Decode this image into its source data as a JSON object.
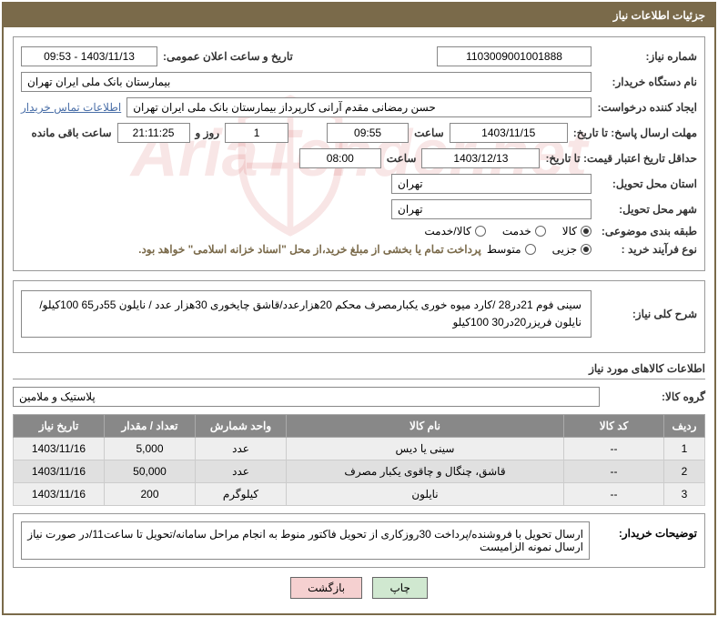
{
  "header": {
    "title": "جزئیات اطلاعات نیاز"
  },
  "form": {
    "need_number_label": "شماره نیاز:",
    "need_number": "1103009001001888",
    "announce_label": "تاریخ و ساعت اعلان عمومی:",
    "announce_value": "1403/11/13 - 09:53",
    "buyer_org_label": "نام دستگاه خریدار:",
    "buyer_org": "بیمارستان بانک ملی ایران تهران",
    "requester_label": "ایجاد کننده درخواست:",
    "requester": "حسن رمضانی مقدم آرانی کارپرداز بیمارستان بانک ملی ایران تهران",
    "contact_link": "اطلاعات تماس خریدار",
    "deadline_label": "مهلت ارسال پاسخ: تا تاریخ:",
    "deadline_date": "1403/11/15",
    "time_label": "ساعت",
    "deadline_time": "09:55",
    "days_label": "روز و",
    "days_value": "1",
    "remaining_time": "21:11:25",
    "remaining_label": "ساعت باقی مانده",
    "validity_label": "حداقل تاریخ اعتبار قیمت: تا تاریخ:",
    "validity_date": "1403/12/13",
    "validity_time": "08:00",
    "province_label": "استان محل تحویل:",
    "province": "تهران",
    "city_label": "شهر محل تحویل:",
    "city": "تهران",
    "category_label": "طبقه بندی موضوعی:",
    "purchase_type_label": "نوع فرآیند خرید :",
    "payment_note": "پرداخت تمام یا بخشی از مبلغ خرید،از محل \"اسناد خزانه اسلامی\" خواهد بود.",
    "radios": {
      "category": [
        {
          "label": "کالا",
          "checked": true
        },
        {
          "label": "خدمت",
          "checked": false
        },
        {
          "label": "کالا/خدمت",
          "checked": false
        }
      ],
      "purchase": [
        {
          "label": "جزیی",
          "checked": true
        },
        {
          "label": "متوسط",
          "checked": false
        }
      ]
    },
    "description_label": "شرح کلی نیاز:",
    "description": "سینی فوم 21در28 /کارد میوه خوری یکبارمصرف محکم 20هزارعدد/قاشق چایخوری 30هزار عدد / نایلون 55در65 100کیلو/نایلون فریزر20در30 100کیلو"
  },
  "goods_section_title": "اطلاعات کالاهای مورد نیاز",
  "goods_group_label": "گروه کالا:",
  "goods_group": "پلاستیک و ملامین",
  "table": {
    "headers": [
      "ردیف",
      "کد کالا",
      "نام کالا",
      "واحد شمارش",
      "تعداد / مقدار",
      "تاریخ نیاز"
    ],
    "rows": [
      [
        "1",
        "--",
        "سینی یا دیس",
        "عدد",
        "5,000",
        "1403/11/16"
      ],
      [
        "2",
        "--",
        "قاشق، چنگال و چاقوی یکبار مصرف",
        "عدد",
        "50,000",
        "1403/11/16"
      ],
      [
        "3",
        "--",
        "نایلون",
        "کیلوگرم",
        "200",
        "1403/11/16"
      ]
    ]
  },
  "buyer_notes_label": "توضیحات خریدار:",
  "buyer_notes": "ارسال تحویل با فروشنده/پرداخت 30روزکاری از تحویل فاکتور منوط به انجام مراحل سامانه/تحویل تا ساعت11/در صورت نیاز ارسال نمونه الزامیست",
  "buttons": {
    "print": "چاپ",
    "back": "بازگشت"
  },
  "watermark": "AriaTender.net",
  "colors": {
    "header_bg": "#7a6a4a",
    "table_header_bg": "#888888",
    "btn_print_bg": "#d0e8d0",
    "btn_back_bg": "#f5d0d0"
  }
}
